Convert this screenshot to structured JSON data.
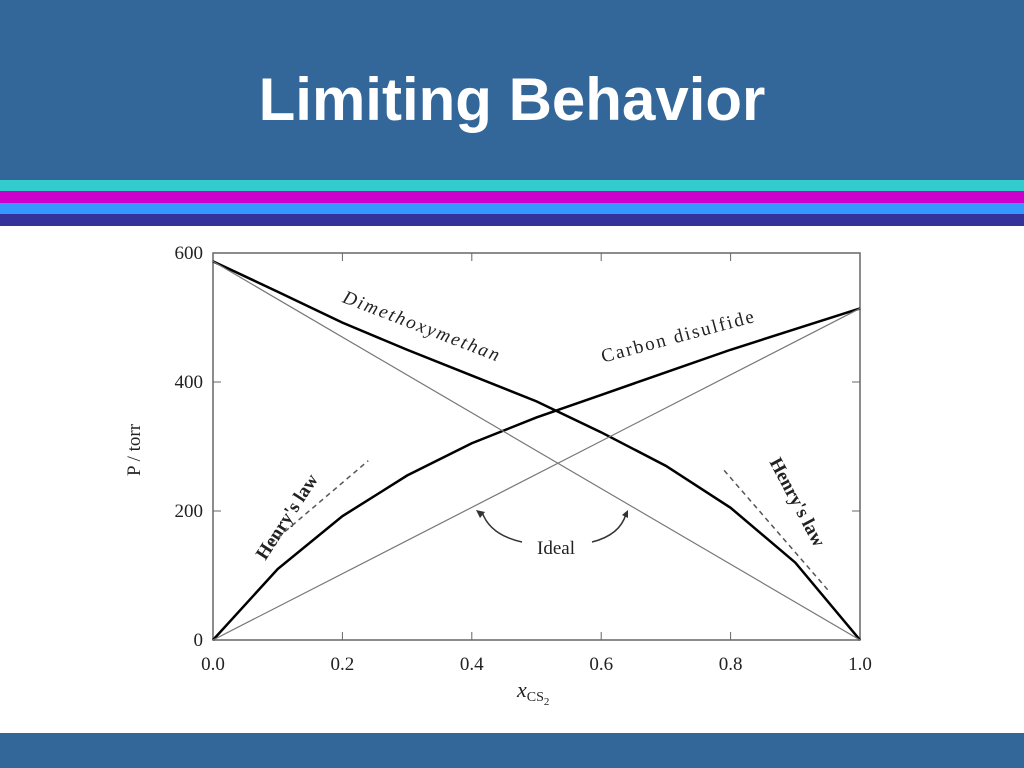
{
  "title": "Limiting Behavior",
  "chart_data": {
    "type": "line",
    "ylabel": "P / torr",
    "xlabel": {
      "main": "x",
      "sub": "CS",
      "subsub": "2"
    },
    "xlim": [
      0,
      1
    ],
    "ylim": [
      0,
      600
    ],
    "xticks": [
      {
        "value": 0,
        "label": "0.0"
      },
      0.2,
      0.4,
      0.6,
      0.8,
      {
        "value": 1,
        "label": "1.0"
      }
    ],
    "yticks": [
      0,
      200,
      400,
      600
    ],
    "annotation": "Ideal",
    "series": [
      {
        "name": "Dimethoxymethan",
        "color": "#000000",
        "width": 2.5,
        "dash": false,
        "x": [
          0,
          0.1,
          0.2,
          0.3,
          0.4,
          0.5,
          0.6,
          0.7,
          0.8,
          0.9,
          1.0
        ],
        "values": [
          587,
          540,
          492,
          450,
          410,
          370,
          322,
          270,
          205,
          120,
          0
        ]
      },
      {
        "name": "Carbon disulfide",
        "color": "#000000",
        "width": 2.5,
        "dash": false,
        "x": [
          0,
          0.1,
          0.2,
          0.3,
          0.4,
          0.5,
          0.6,
          0.7,
          0.8,
          0.9,
          1.0
        ],
        "values": [
          0,
          110,
          192,
          255,
          305,
          345,
          380,
          415,
          450,
          482,
          514
        ]
      },
      {
        "color": "#777777",
        "width": 1.2,
        "dash": false,
        "x": [
          0,
          1
        ],
        "values": [
          587,
          0
        ]
      },
      {
        "color": "#777777",
        "width": 1.2,
        "dash": false,
        "x": [
          0,
          1
        ],
        "values": [
          0,
          514
        ]
      },
      {
        "name": "Henry's law",
        "color": "#555555",
        "width": 1.5,
        "dash": true,
        "x": [
          0.09,
          0.24
        ],
        "values": [
          150,
          278
        ]
      },
      {
        "name": "Henry's law",
        "color": "#555555",
        "width": 1.5,
        "dash": true,
        "x": [
          0.79,
          0.95
        ],
        "values": [
          263,
          78
        ]
      }
    ]
  }
}
